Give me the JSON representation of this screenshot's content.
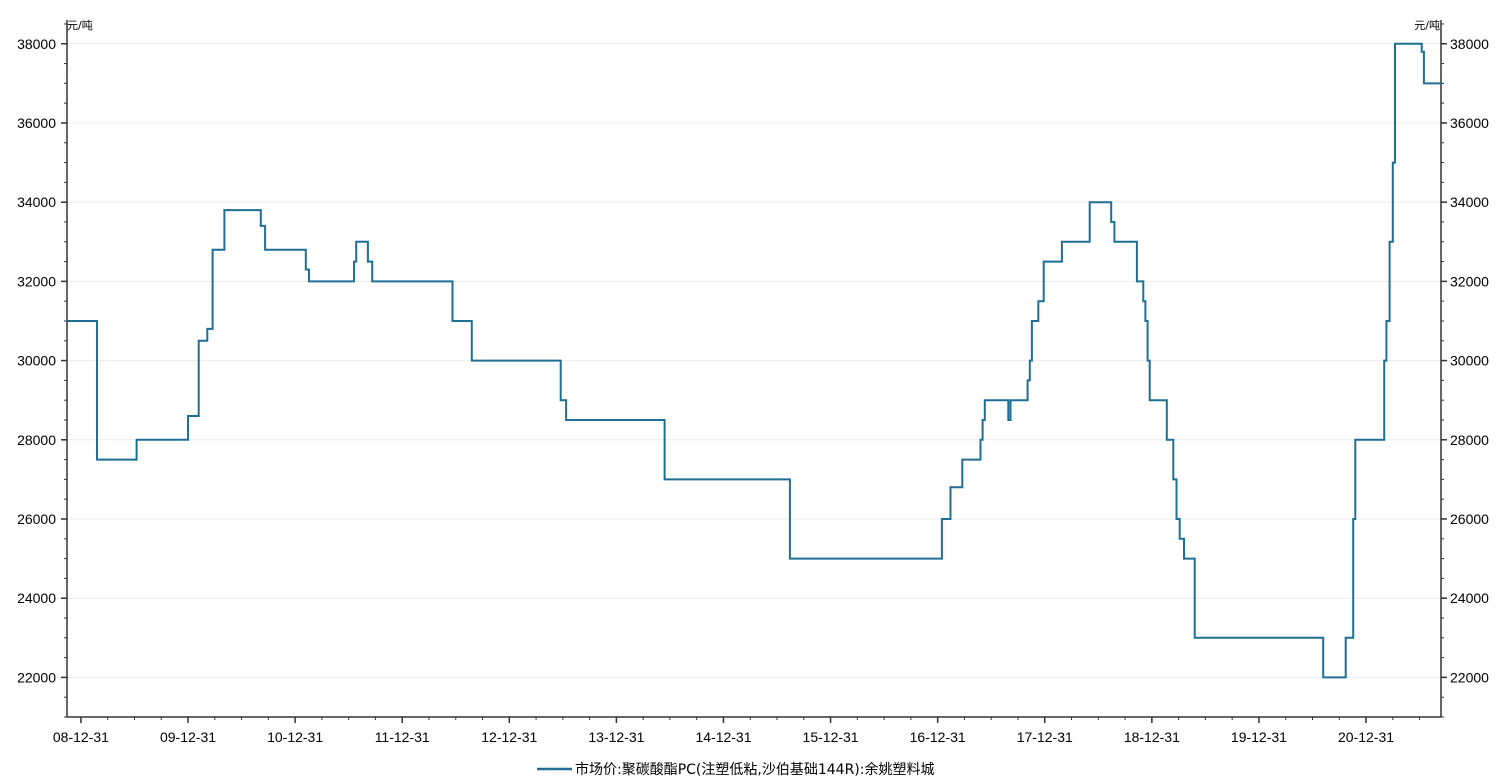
{
  "chart_data": {
    "type": "line",
    "title": "",
    "y_unit_left": "元/吨",
    "y_unit_right": "元/吨",
    "ylim": [
      21000,
      38600
    ],
    "y_ticks": [
      22000,
      24000,
      26000,
      28000,
      30000,
      32000,
      34000,
      36000,
      38000
    ],
    "y_tick_labels": [
      "22000",
      "24000",
      "26000",
      "28000",
      "30000",
      "32000",
      "34000",
      "36000",
      "38000"
    ],
    "xlim": [
      2008.87,
      2021.7
    ],
    "x_ticks": [
      2009.0,
      2010.0,
      2011.0,
      2012.0,
      2013.0,
      2014.0,
      2015.0,
      2016.0,
      2017.0,
      2018.0,
      2019.0,
      2020.0,
      2021.0
    ],
    "x_tick_labels": [
      "08-12-31",
      "09-12-31",
      "10-12-31",
      "11-12-31",
      "12-12-31",
      "13-12-31",
      "14-12-31",
      "15-12-31",
      "16-12-31",
      "17-12-31",
      "18-12-31",
      "19-12-31",
      "20-12-31"
    ],
    "grid": true,
    "legend_position": "bottom",
    "series": [
      {
        "name": "市场价:聚碳酸酯PC(注塑低粘,沙伯基础144R):余姚塑料城",
        "color": "#1f6f95",
        "step": true,
        "points": [
          [
            2008.87,
            31000
          ],
          [
            2009.15,
            27500
          ],
          [
            2009.52,
            28000
          ],
          [
            2010.0,
            28600
          ],
          [
            2010.1,
            30500
          ],
          [
            2010.18,
            30800
          ],
          [
            2010.23,
            32800
          ],
          [
            2010.34,
            33800
          ],
          [
            2010.68,
            33400
          ],
          [
            2010.72,
            32800
          ],
          [
            2011.1,
            32300
          ],
          [
            2011.13,
            32000
          ],
          [
            2011.55,
            32500
          ],
          [
            2011.57,
            33000
          ],
          [
            2011.68,
            32500
          ],
          [
            2011.72,
            32000
          ],
          [
            2012.47,
            31000
          ],
          [
            2012.65,
            30000
          ],
          [
            2013.48,
            29000
          ],
          [
            2013.53,
            28500
          ],
          [
            2014.45,
            27000
          ],
          [
            2015.62,
            25000
          ],
          [
            2017.04,
            26000
          ],
          [
            2017.12,
            26800
          ],
          [
            2017.23,
            27500
          ],
          [
            2017.4,
            28000
          ],
          [
            2017.42,
            28500
          ],
          [
            2017.44,
            29000
          ],
          [
            2017.66,
            28500
          ],
          [
            2017.68,
            29000
          ],
          [
            2017.84,
            29500
          ],
          [
            2017.86,
            30000
          ],
          [
            2017.88,
            31000
          ],
          [
            2017.94,
            31500
          ],
          [
            2017.99,
            32500
          ],
          [
            2018.16,
            33000
          ],
          [
            2018.42,
            34000
          ],
          [
            2018.62,
            33500
          ],
          [
            2018.65,
            33000
          ],
          [
            2018.86,
            32000
          ],
          [
            2018.92,
            31500
          ],
          [
            2018.94,
            31000
          ],
          [
            2018.96,
            30000
          ],
          [
            2018.98,
            29000
          ],
          [
            2019.14,
            28000
          ],
          [
            2019.2,
            27000
          ],
          [
            2019.23,
            26000
          ],
          [
            2019.26,
            25500
          ],
          [
            2019.3,
            25000
          ],
          [
            2019.4,
            23000
          ],
          [
            2020.6,
            22000
          ],
          [
            2020.81,
            23000
          ],
          [
            2020.88,
            26000
          ],
          [
            2020.9,
            28000
          ],
          [
            2021.17,
            30000
          ],
          [
            2021.19,
            31000
          ],
          [
            2021.22,
            33000
          ],
          [
            2021.25,
            35000
          ],
          [
            2021.27,
            38000
          ],
          [
            2021.52,
            37800
          ],
          [
            2021.54,
            37000
          ],
          [
            2021.7,
            37000
          ]
        ]
      }
    ]
  }
}
